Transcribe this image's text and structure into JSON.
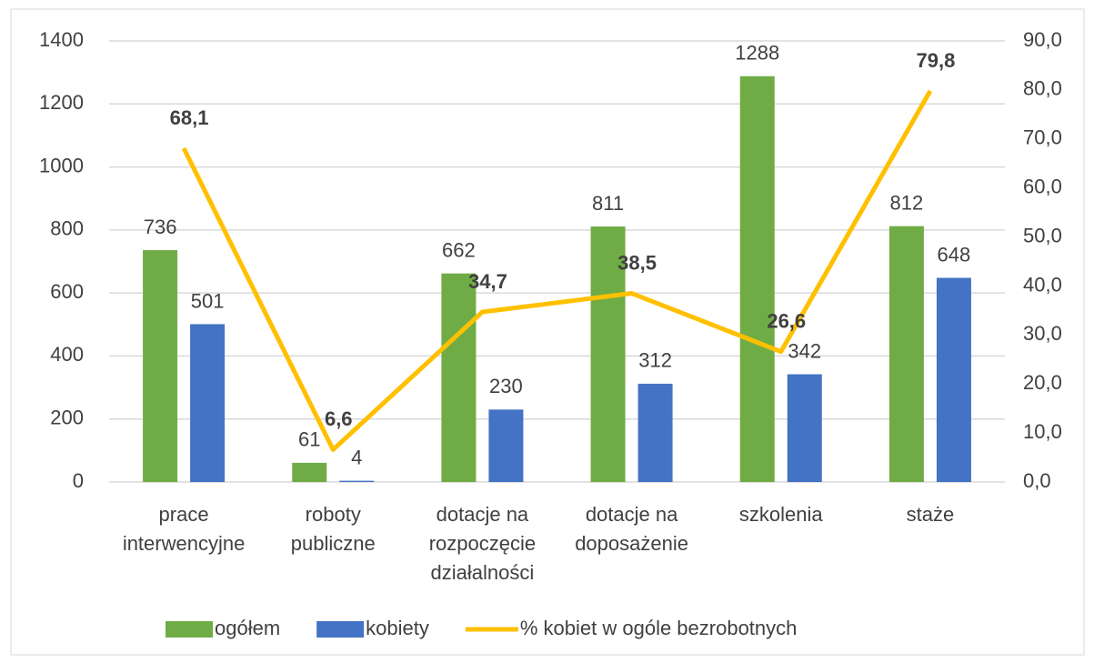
{
  "chart_data": {
    "type": "bar",
    "categories": [
      [
        "prace",
        "interwencyjne"
      ],
      [
        "roboty",
        "publiczne"
      ],
      [
        "dotacje na",
        "rozpoczęcie",
        "działalności"
      ],
      [
        "dotacje na",
        "doposażenie"
      ],
      [
        "szkolenia"
      ],
      [
        "staże"
      ]
    ],
    "series": [
      {
        "name": "ogółem",
        "color": "#6fac46",
        "values": [
          736,
          61,
          662,
          811,
          1288,
          812
        ]
      },
      {
        "name": "kobiety",
        "color": "#4472c4",
        "values": [
          501,
          4,
          230,
          312,
          342,
          648
        ]
      },
      {
        "name": "% kobiet w ogóle bezrobotnych",
        "color": "#ffc000",
        "type": "line",
        "axis": "y2",
        "values": [
          68.1,
          6.6,
          34.7,
          38.5,
          26.6,
          79.8
        ],
        "value_labels": [
          "68,1",
          "6,6",
          "34,7",
          "38,5",
          "26,6",
          "79,8"
        ]
      }
    ],
    "ylim": [
      0,
      1400
    ],
    "yticks": [
      0,
      200,
      400,
      600,
      800,
      1000,
      1200,
      1400
    ],
    "y2lim": [
      0,
      90
    ],
    "y2ticks": [
      {
        "value": 0,
        "label": "0,0"
      },
      {
        "value": 10,
        "label": "10,0"
      },
      {
        "value": 20,
        "label": "20,0"
      },
      {
        "value": 30,
        "label": "30,0"
      },
      {
        "value": 40,
        "label": "40,0"
      },
      {
        "value": 50,
        "label": "50,0"
      },
      {
        "value": 60,
        "label": "60,0"
      },
      {
        "value": 70,
        "label": "70,0"
      },
      {
        "value": 80,
        "label": "80,0"
      },
      {
        "value": 90,
        "label": "90,0"
      }
    ],
    "grid": true,
    "legend": "bottom"
  }
}
